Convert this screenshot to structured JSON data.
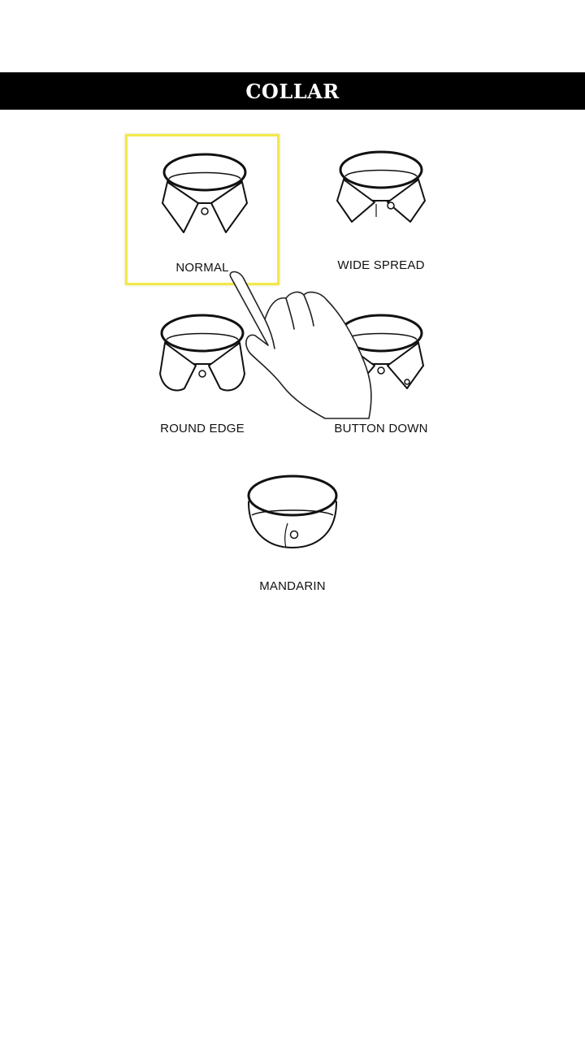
{
  "header": {
    "title": "COLLAR"
  },
  "collar_options": [
    {
      "label": "NORMAL",
      "selected": true,
      "icon": "normal-collar-icon"
    },
    {
      "label": "WIDE SPREAD",
      "selected": false,
      "icon": "wide-spread-collar-icon"
    },
    {
      "label": "ROUND EDGE",
      "selected": false,
      "icon": "round-edge-collar-icon"
    },
    {
      "label": "BUTTON DOWN",
      "selected": false,
      "icon": "button-down-collar-icon"
    },
    {
      "label": "MANDARIN",
      "selected": false,
      "icon": "mandarin-collar-icon"
    }
  ],
  "colors": {
    "header_bg": "#000000",
    "header_text": "#ffffff",
    "selection_border": "#f2e84a"
  },
  "overlay": {
    "icon": "tap-hand-icon"
  }
}
